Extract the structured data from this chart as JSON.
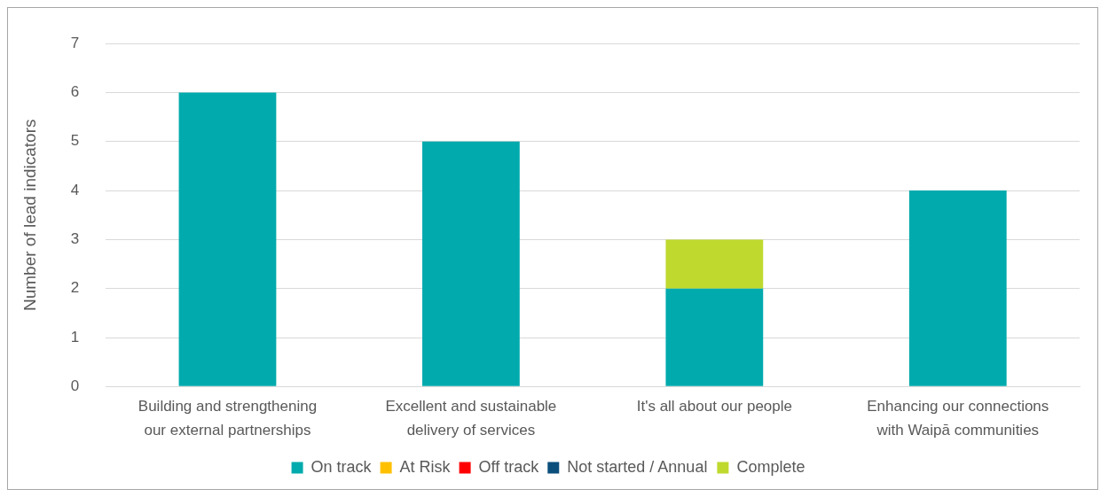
{
  "chart_data": {
    "type": "bar",
    "stacked": true,
    "ylabel": "Number of lead indicators",
    "categories": [
      "Building and strengthening our external partnerships",
      "Excellent and sustainable delivery of services",
      "It's all about our people",
      "Enhancing our connections with Waipā communities"
    ],
    "series": [
      {
        "name": "On track",
        "color": "#00aaad",
        "values": [
          6,
          5,
          2,
          4
        ]
      },
      {
        "name": "At Risk",
        "color": "#ffc000",
        "values": [
          0,
          0,
          0,
          0
        ]
      },
      {
        "name": "Off track",
        "color": "#ff0000",
        "values": [
          0,
          0,
          0,
          0
        ]
      },
      {
        "name": "Not started / Annual",
        "color": "#0b4f7c",
        "values": [
          0,
          0,
          0,
          0
        ]
      },
      {
        "name": "Complete",
        "color": "#c0d92e",
        "values": [
          0,
          0,
          1,
          0
        ]
      }
    ],
    "ylim": [
      0,
      7
    ],
    "yticks": [
      0,
      1,
      2,
      3,
      4,
      5,
      6,
      7
    ],
    "grid": "y",
    "legend": "bottom"
  }
}
